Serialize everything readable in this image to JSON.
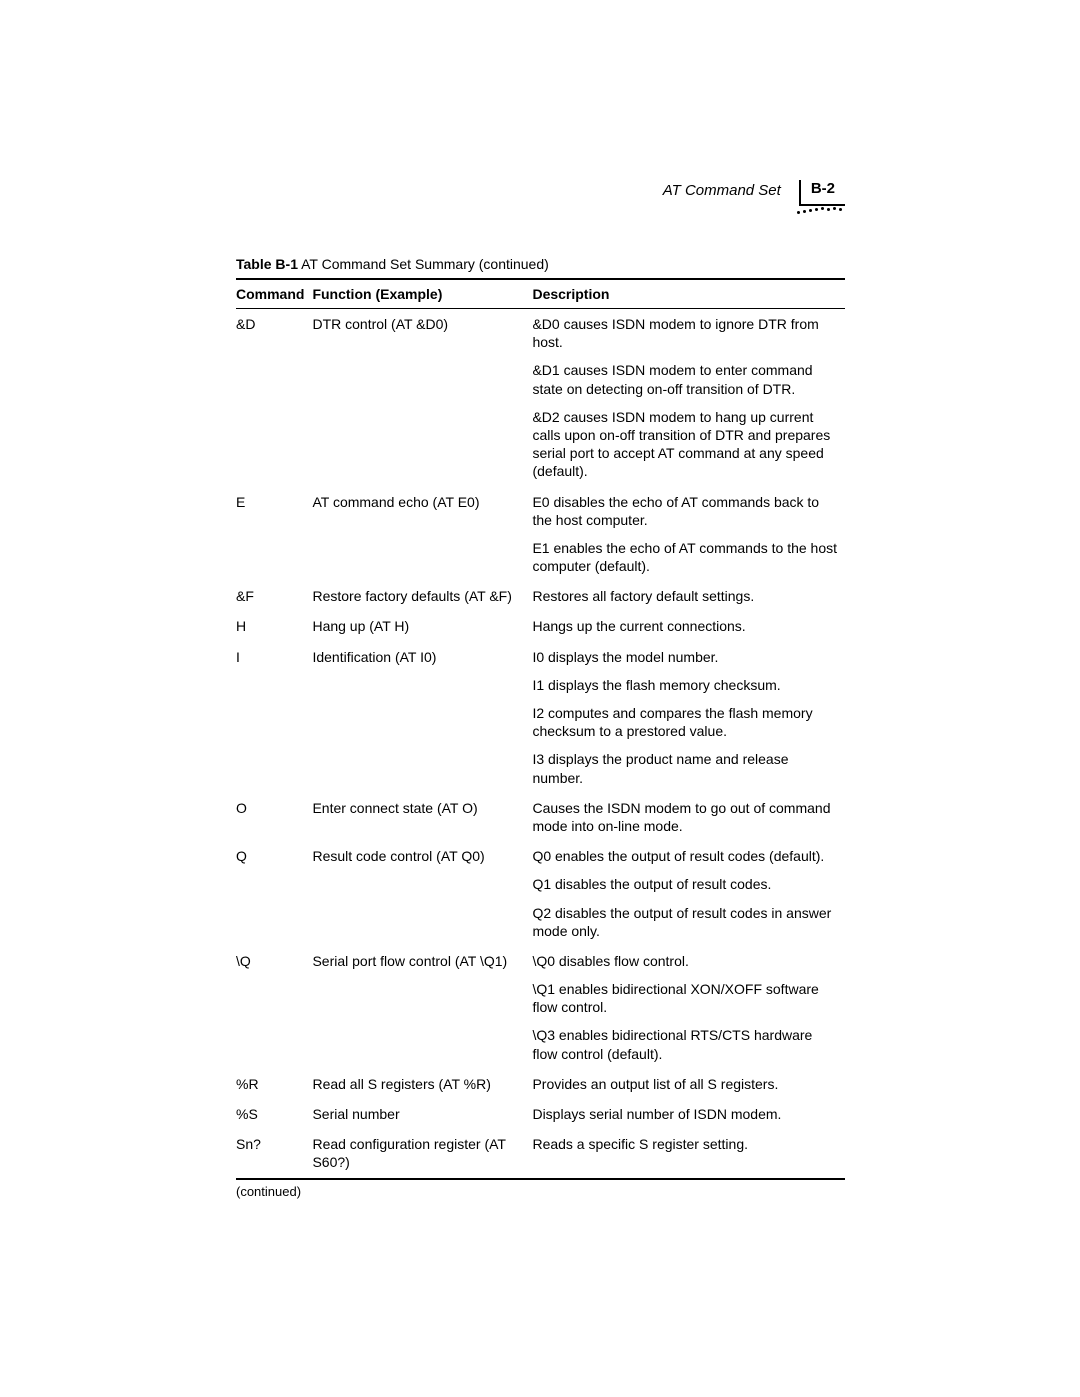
{
  "header": {
    "section_title": "AT Command Set",
    "page_number": "B-2"
  },
  "table_caption": {
    "label": "Table B-1",
    "title": "  AT Command Set Summary (continued)"
  },
  "columns": {
    "command": "Command",
    "function": "Function (Example)",
    "description": "Description"
  },
  "rows": [
    {
      "command": "&D",
      "function": "DTR control (AT &D0)",
      "description": "&D0 causes ISDN modem to ignore DTR from host."
    },
    {
      "command": "",
      "function": "",
      "description": "&D1 causes ISDN modem to enter command state on detecting on-off transition of DTR."
    },
    {
      "command": "",
      "function": "",
      "description": "&D2 causes ISDN modem to hang up current calls upon on-off transition of DTR and prepares serial port to accept AT command at any speed (default)."
    },
    {
      "command": "E",
      "function": "AT command echo (AT E0)",
      "description": "E0 disables the echo of AT commands back to the host computer."
    },
    {
      "command": "",
      "function": "",
      "description": "E1 enables the echo of AT commands to the host computer (default)."
    },
    {
      "command": "&F",
      "function": "Restore factory defaults (AT &F)",
      "description": "Restores all factory default settings."
    },
    {
      "command": "H",
      "function": "Hang up (AT H)",
      "description": "Hangs up the current connections."
    },
    {
      "command": "I",
      "function": "Identification (AT I0)",
      "description": "I0 displays the model number."
    },
    {
      "command": "",
      "function": "",
      "description": "I1 displays the flash memory checksum."
    },
    {
      "command": "",
      "function": "",
      "description": "I2 computes and compares the flash memory checksum to a prestored value."
    },
    {
      "command": "",
      "function": "",
      "description": "I3 displays the product name and release number."
    },
    {
      "command": "O",
      "function": "Enter connect state (AT O)",
      "description": "Causes the ISDN modem to go out of command mode into on-line mode."
    },
    {
      "command": "Q",
      "function": "Result code control (AT Q0)",
      "description": "Q0 enables the output of result codes (default)."
    },
    {
      "command": "",
      "function": "",
      "description": "Q1 disables the output of result codes."
    },
    {
      "command": "",
      "function": "",
      "description": "Q2 disables the output of result codes in answer mode only."
    },
    {
      "command": "\\Q",
      "function": "Serial port flow control (AT \\Q1)",
      "description": "\\Q0 disables flow control."
    },
    {
      "command": "",
      "function": "",
      "description": "\\Q1 enables bidirectional XON/XOFF software flow control."
    },
    {
      "command": "",
      "function": "",
      "description": "\\Q3 enables bidirectional RTS/CTS hardware flow control (default)."
    },
    {
      "command": "%R",
      "function": "Read all S registers (AT %R)",
      "description": "Provides an output list of all S registers."
    },
    {
      "command": "%S",
      "function": "Serial number",
      "description": "Displays serial number of ISDN modem."
    },
    {
      "command": "Sn?",
      "function": "Read configuration register (AT S60?)",
      "description": "Reads a specific S register setting."
    }
  ],
  "continued_text": "(continued)"
}
